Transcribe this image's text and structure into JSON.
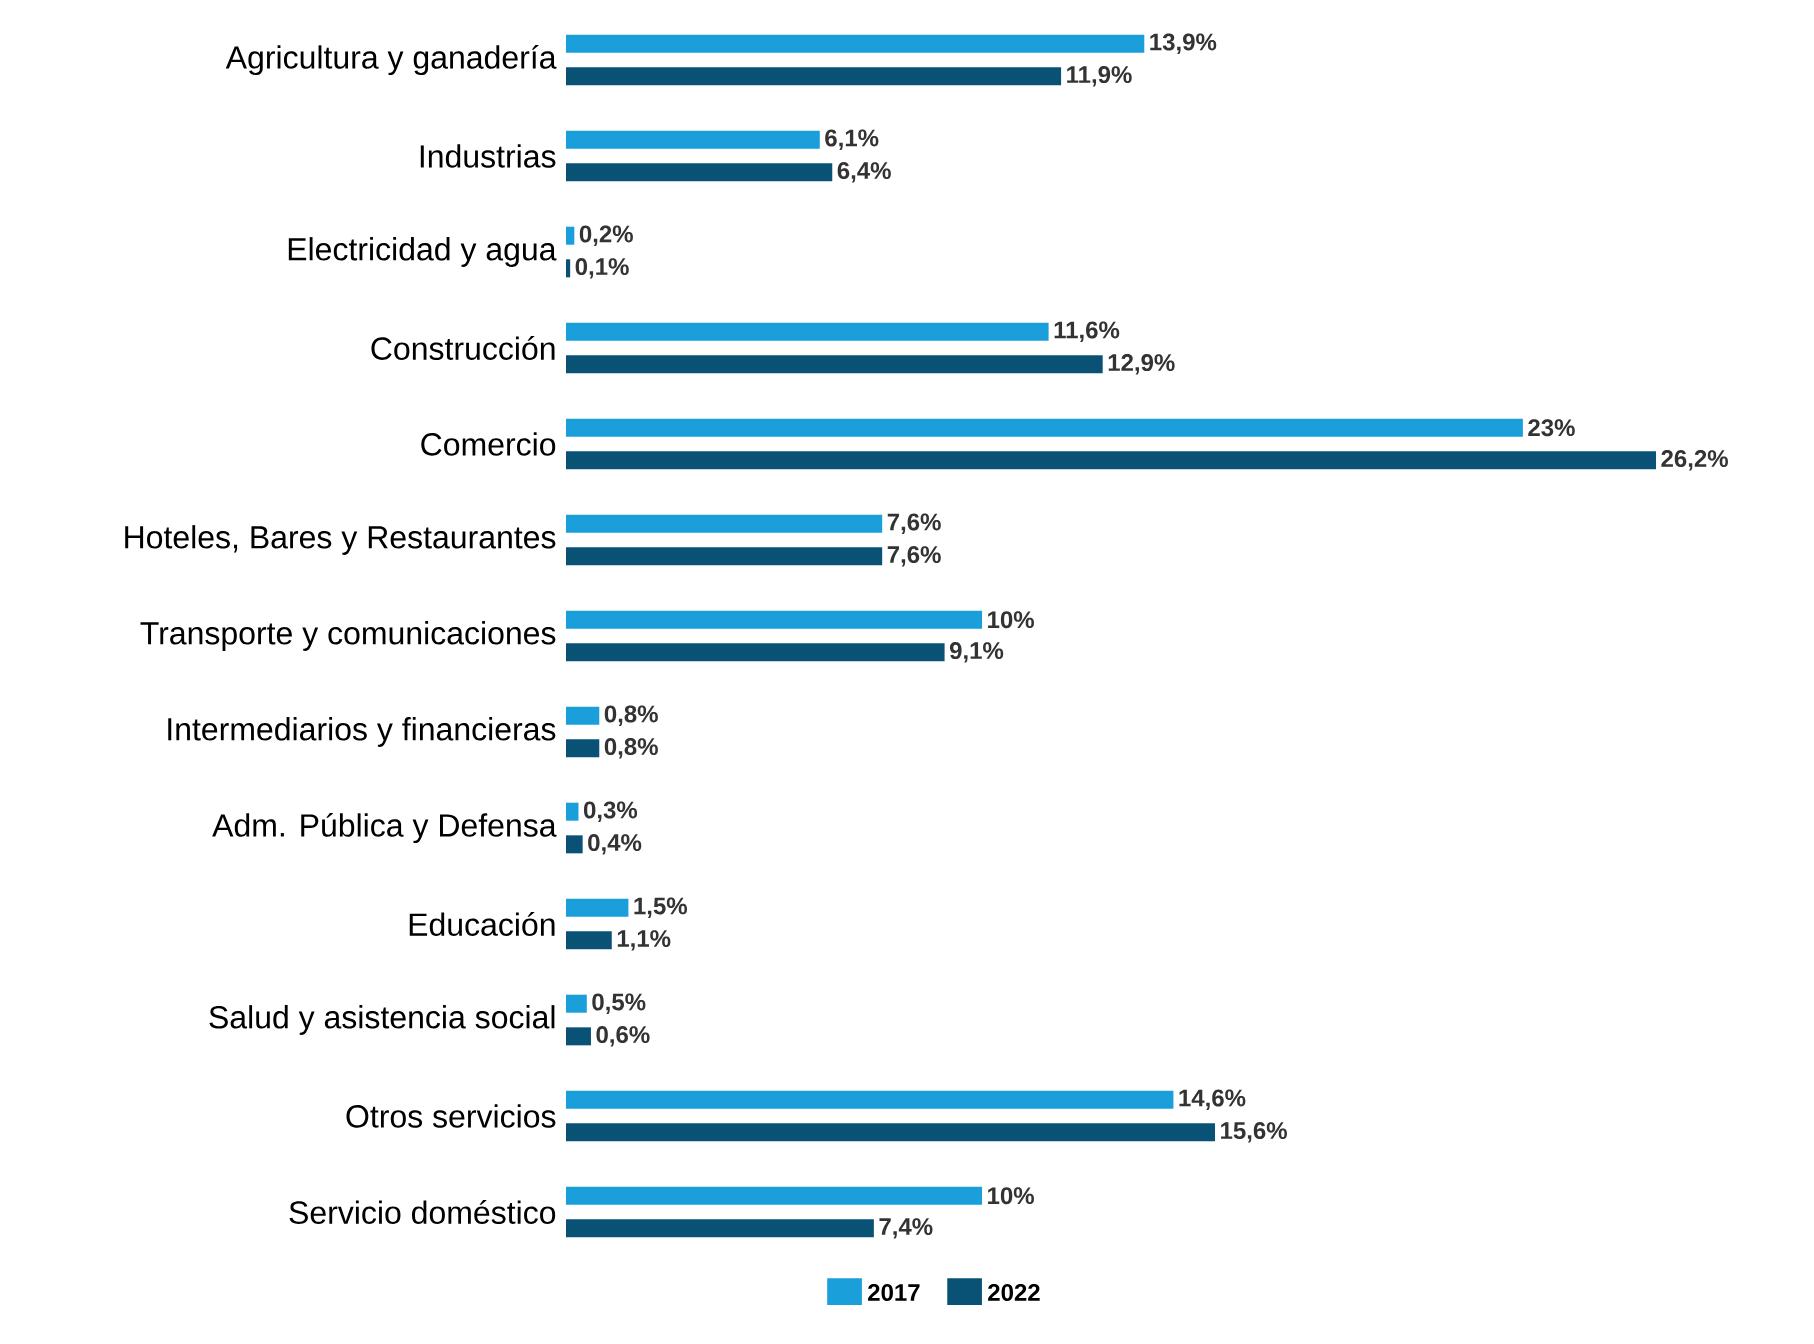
{
  "chart_data": {
    "type": "bar",
    "orientation": "horizontal",
    "legend": "bottom",
    "categories": [
      "Agricultura y ganadería",
      "Industrias",
      "Electricidad y agua",
      "Construcción",
      "Comercio",
      "Hoteles, Bares y Restaurantes",
      "Transporte y comunicaciones",
      "Intermediarios y financieras",
      "Adm. Pública y Defensa",
      "Educación",
      "Salud y asistencia social",
      "Otros servicios",
      "Servicio doméstico"
    ],
    "series": [
      {
        "name": "2017",
        "color": "#1a9fdb",
        "values": [
          13.9,
          6.1,
          0.2,
          11.6,
          23,
          7.6,
          10,
          0.8,
          0.3,
          1.5,
          0.5,
          14.6,
          10
        ],
        "value_labels": [
          "13,9%",
          "6,1%",
          "0,2%",
          "11,6%",
          "23%",
          "7,6%",
          "10%",
          "0,8%",
          "0,3%",
          "1,5%",
          "0,5%",
          "14,6%",
          "10%"
        ]
      },
      {
        "name": "2022",
        "color": "#0a5275",
        "values": [
          11.9,
          6.4,
          0.1,
          12.9,
          26.2,
          7.6,
          9.1,
          0.8,
          0.4,
          1.1,
          0.6,
          15.6,
          7.4
        ],
        "value_labels": [
          "11,9%",
          "6,4%",
          "0,1%",
          "12,9%",
          "26,2%",
          "7,6%",
          "9,1%",
          "0,8%",
          "0,4%",
          "1,1%",
          "0,6%",
          "15,6%",
          "7,4%"
        ]
      }
    ]
  }
}
